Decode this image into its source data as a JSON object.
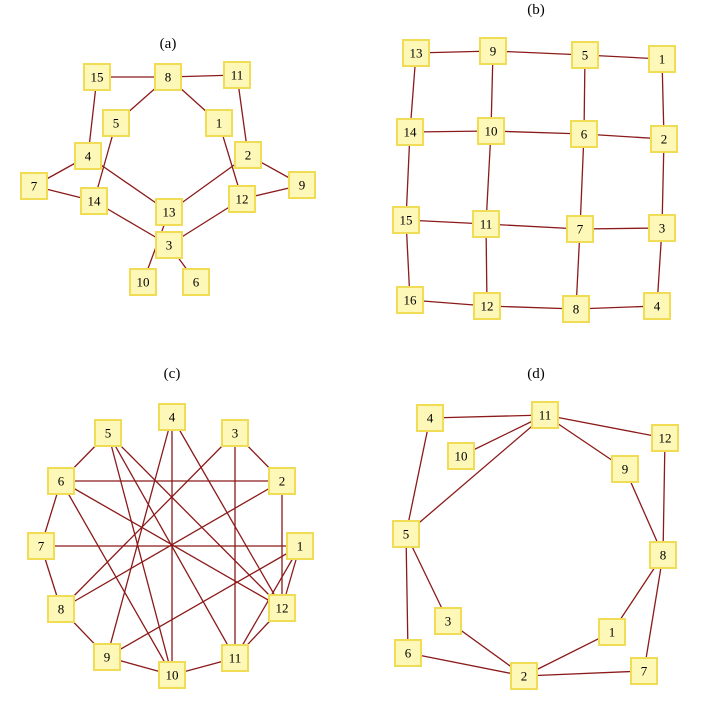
{
  "colors": {
    "edge": "#8b1a1a",
    "node_fill": "#fdf8b8",
    "node_border": "#f0dc55",
    "background": "#ffffff"
  },
  "panels": [
    {
      "id": "a",
      "label": "(a)",
      "nodes": [
        "1",
        "2",
        "3",
        "4",
        "5",
        "6",
        "7",
        "8",
        "9",
        "10",
        "11",
        "12",
        "13",
        "14",
        "15"
      ],
      "edges": [
        [
          "15",
          "8"
        ],
        [
          "8",
          "11"
        ],
        [
          "8",
          "5"
        ],
        [
          "8",
          "1"
        ],
        [
          "15",
          "4"
        ],
        [
          "11",
          "2"
        ],
        [
          "5",
          "14"
        ],
        [
          "1",
          "12"
        ],
        [
          "4",
          "7"
        ],
        [
          "4",
          "13"
        ],
        [
          "2",
          "9"
        ],
        [
          "2",
          "13"
        ],
        [
          "7",
          "14"
        ],
        [
          "14",
          "3"
        ],
        [
          "12",
          "9"
        ],
        [
          "12",
          "3"
        ],
        [
          "13",
          "10"
        ],
        [
          "3",
          "6"
        ]
      ]
    },
    {
      "id": "b",
      "label": "(b)",
      "nodes": [
        "1",
        "2",
        "3",
        "4",
        "5",
        "6",
        "7",
        "8",
        "9",
        "10",
        "11",
        "12",
        "13",
        "14",
        "15",
        "16"
      ],
      "edges": [
        [
          "13",
          "9"
        ],
        [
          "9",
          "5"
        ],
        [
          "5",
          "1"
        ],
        [
          "14",
          "10"
        ],
        [
          "10",
          "6"
        ],
        [
          "6",
          "2"
        ],
        [
          "15",
          "11"
        ],
        [
          "11",
          "7"
        ],
        [
          "7",
          "3"
        ],
        [
          "16",
          "12"
        ],
        [
          "12",
          "8"
        ],
        [
          "8",
          "4"
        ],
        [
          "13",
          "14"
        ],
        [
          "14",
          "15"
        ],
        [
          "15",
          "16"
        ],
        [
          "9",
          "10"
        ],
        [
          "10",
          "11"
        ],
        [
          "11",
          "12"
        ],
        [
          "5",
          "6"
        ],
        [
          "6",
          "7"
        ],
        [
          "7",
          "8"
        ],
        [
          "1",
          "2"
        ],
        [
          "2",
          "3"
        ],
        [
          "3",
          "4"
        ]
      ]
    },
    {
      "id": "c",
      "label": "(c)",
      "nodes": [
        "1",
        "2",
        "3",
        "4",
        "5",
        "6",
        "7",
        "8",
        "9",
        "10",
        "11",
        "12"
      ],
      "edges": [
        [
          "6",
          "2"
        ],
        [
          "7",
          "1"
        ],
        [
          "8",
          "3"
        ],
        [
          "9",
          "4"
        ],
        [
          "10",
          "4"
        ],
        [
          "11",
          "5"
        ],
        [
          "12",
          "6"
        ],
        [
          "8",
          "2"
        ],
        [
          "9",
          "1"
        ],
        [
          "10",
          "5"
        ],
        [
          "11",
          "3"
        ],
        [
          "12",
          "4"
        ],
        [
          "11",
          "1"
        ],
        [
          "12",
          "2"
        ],
        [
          "6",
          "10"
        ],
        [
          "12",
          "5"
        ],
        [
          "5",
          "6"
        ],
        [
          "6",
          "7"
        ],
        [
          "7",
          "8"
        ],
        [
          "8",
          "9"
        ],
        [
          "9",
          "10"
        ],
        [
          "10",
          "11"
        ],
        [
          "11",
          "12"
        ],
        [
          "12",
          "1"
        ],
        [
          "3",
          "2"
        ]
      ]
    },
    {
      "id": "d",
      "label": "(d)",
      "nodes": [
        "1",
        "2",
        "3",
        "4",
        "5",
        "6",
        "7",
        "8",
        "9",
        "10",
        "11",
        "12"
      ],
      "edges": [
        [
          "4",
          "11"
        ],
        [
          "11",
          "12"
        ],
        [
          "11",
          "10"
        ],
        [
          "11",
          "9"
        ],
        [
          "11",
          "5"
        ],
        [
          "4",
          "5"
        ],
        [
          "12",
          "8"
        ],
        [
          "9",
          "8"
        ],
        [
          "5",
          "3"
        ],
        [
          "5",
          "6"
        ],
        [
          "8",
          "1"
        ],
        [
          "8",
          "7"
        ],
        [
          "3",
          "2"
        ],
        [
          "6",
          "2"
        ],
        [
          "1",
          "2"
        ],
        [
          "2",
          "7"
        ]
      ]
    }
  ]
}
